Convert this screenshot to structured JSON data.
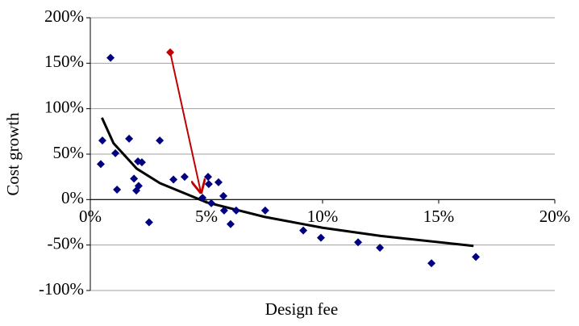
{
  "chart_data": {
    "type": "scatter",
    "x_label": "Design fee",
    "y_label": "Cost growth",
    "xlim": [
      0,
      20
    ],
    "ylim": [
      -100,
      200
    ],
    "xticks": [
      {
        "value": 0,
        "label": "0%"
      },
      {
        "value": 5,
        "label": "5%"
      },
      {
        "value": 10,
        "label": "10%"
      },
      {
        "value": 15,
        "label": "15%"
      },
      {
        "value": 20,
        "label": "20%"
      }
    ],
    "yticks": [
      {
        "value": -100,
        "label": "-100%"
      },
      {
        "value": -50,
        "label": "-50%"
      },
      {
        "value": 0,
        "label": "0%"
      },
      {
        "value": 50,
        "label": "50%"
      },
      {
        "value": 100,
        "label": "100%"
      },
      {
        "value": 150,
        "label": "150%"
      },
      {
        "value": 200,
        "label": "200%"
      }
    ],
    "grid": true,
    "points": {
      "color": "#000080",
      "x": [
        0.45,
        0.52,
        0.87,
        1.08,
        1.15,
        1.67,
        1.88,
        1.98,
        2.05,
        2.08,
        2.22,
        2.53,
        2.99,
        3.58,
        4.06,
        4.83,
        5.07,
        5.1,
        5.21,
        5.52,
        5.73,
        5.76,
        6.04,
        6.28,
        7.53,
        9.17,
        9.93,
        11.53,
        12.47,
        14.69,
        16.6
      ],
      "values": [
        39,
        65,
        156,
        51,
        11,
        67,
        23,
        10,
        42,
        15,
        41,
        -25,
        65,
        22,
        25,
        2,
        25,
        17,
        -4,
        19,
        4,
        -12,
        -27,
        -12,
        -12,
        -34,
        -42,
        -47,
        -53,
        -70,
        -63
      ]
    },
    "highlight": {
      "color": "#c00000",
      "x": [
        3.44
      ],
      "values": [
        162
      ]
    },
    "trend": {
      "color": "#000000",
      "x": [
        0.5,
        1,
        2,
        3,
        5,
        7.5,
        10,
        12.5,
        16.5
      ],
      "values": [
        90,
        62,
        34,
        18,
        -3,
        -19,
        -31,
        -40,
        -51
      ]
    },
    "arrow": {
      "color": "#c00000",
      "x": [
        3.44,
        4.76
      ],
      "values": [
        162,
        8
      ]
    }
  }
}
